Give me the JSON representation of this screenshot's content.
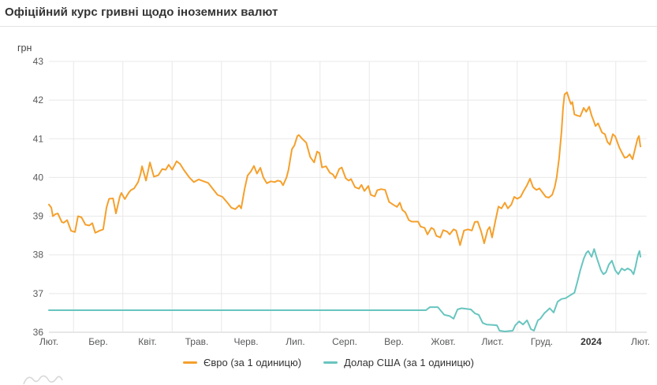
{
  "page": {
    "title": "Офіційний курс гривні щодо іноземних валют"
  },
  "colors": {
    "euro_line": "#f5a02c",
    "usd_line": "#68c5c0",
    "grid": "#e8e8e8",
    "axis_line": "#cfcfcf",
    "tick_text": "#58595b",
    "tick_text_bold": "#333333",
    "hint_wave": "#d8d8d8"
  },
  "chart_data": {
    "type": "line",
    "title": "Офіційний курс гривні щодо іноземних валют",
    "xlabel": "",
    "ylabel": "грн",
    "ylim": [
      36,
      43
    ],
    "y_ticks": [
      36,
      37,
      38,
      39,
      40,
      41,
      42,
      43
    ],
    "x_ticks": [
      {
        "label": "Лют.",
        "bold": false
      },
      {
        "label": "Бер.",
        "bold": false
      },
      {
        "label": "Квіт.",
        "bold": false
      },
      {
        "label": "Трав.",
        "bold": false
      },
      {
        "label": "Черв.",
        "bold": false
      },
      {
        "label": "Лип.",
        "bold": false
      },
      {
        "label": "Серп.",
        "bold": false
      },
      {
        "label": "Вер.",
        "bold": false
      },
      {
        "label": "Жовт.",
        "bold": false
      },
      {
        "label": "Лист.",
        "bold": false
      },
      {
        "label": "Груд.",
        "bold": false
      },
      {
        "label": "2024",
        "bold": true
      },
      {
        "label": "Лют.",
        "bold": false
      }
    ],
    "grid": true,
    "legend_position": "bottom",
    "series": [
      {
        "name": "Євро (за 1 одиницю)",
        "color": "#f5a02c",
        "points": [
          [
            0,
            39.3
          ],
          [
            0.05,
            39.22
          ],
          [
            0.08,
            39.0
          ],
          [
            0.13,
            39.05
          ],
          [
            0.18,
            39.07
          ],
          [
            0.26,
            38.85
          ],
          [
            0.3,
            38.83
          ],
          [
            0.37,
            38.9
          ],
          [
            0.45,
            38.62
          ],
          [
            0.53,
            38.59
          ],
          [
            0.59,
            39.0
          ],
          [
            0.66,
            38.97
          ],
          [
            0.74,
            38.78
          ],
          [
            0.82,
            38.76
          ],
          [
            0.88,
            38.82
          ],
          [
            0.94,
            38.57
          ],
          [
            1.02,
            38.62
          ],
          [
            1.1,
            38.66
          ],
          [
            1.17,
            39.23
          ],
          [
            1.22,
            39.45
          ],
          [
            1.3,
            39.46
          ],
          [
            1.36,
            39.07
          ],
          [
            1.44,
            39.51
          ],
          [
            1.47,
            39.6
          ],
          [
            1.54,
            39.44
          ],
          [
            1.62,
            39.61
          ],
          [
            1.66,
            39.67
          ],
          [
            1.73,
            39.72
          ],
          [
            1.81,
            39.88
          ],
          [
            1.86,
            40.1
          ],
          [
            1.89,
            40.29
          ],
          [
            1.97,
            39.92
          ],
          [
            2.05,
            40.39
          ],
          [
            2.13,
            40.02
          ],
          [
            2.22,
            40.06
          ],
          [
            2.3,
            40.22
          ],
          [
            2.37,
            40.2
          ],
          [
            2.43,
            40.33
          ],
          [
            2.5,
            40.2
          ],
          [
            2.59,
            40.42
          ],
          [
            2.66,
            40.35
          ],
          [
            2.74,
            40.19
          ],
          [
            2.85,
            40.0
          ],
          [
            2.94,
            39.88
          ],
          [
            3.04,
            39.95
          ],
          [
            3.14,
            39.9
          ],
          [
            3.23,
            39.86
          ],
          [
            3.33,
            39.7
          ],
          [
            3.42,
            39.55
          ],
          [
            3.52,
            39.5
          ],
          [
            3.62,
            39.35
          ],
          [
            3.7,
            39.22
          ],
          [
            3.78,
            39.18
          ],
          [
            3.86,
            39.28
          ],
          [
            3.9,
            39.2
          ],
          [
            3.97,
            39.7
          ],
          [
            4.03,
            40.05
          ],
          [
            4.1,
            40.16
          ],
          [
            4.16,
            40.3
          ],
          [
            4.22,
            40.1
          ],
          [
            4.29,
            40.25
          ],
          [
            4.35,
            40.0
          ],
          [
            4.42,
            39.85
          ],
          [
            4.5,
            39.9
          ],
          [
            4.58,
            39.88
          ],
          [
            4.64,
            39.92
          ],
          [
            4.7,
            39.9
          ],
          [
            4.75,
            39.8
          ],
          [
            4.82,
            40.0
          ],
          [
            4.86,
            40.2
          ],
          [
            4.93,
            40.73
          ],
          [
            4.98,
            40.83
          ],
          [
            5.04,
            41.07
          ],
          [
            5.07,
            41.1
          ],
          [
            5.14,
            41.0
          ],
          [
            5.22,
            40.9
          ],
          [
            5.3,
            40.53
          ],
          [
            5.38,
            40.39
          ],
          [
            5.44,
            40.67
          ],
          [
            5.49,
            40.63
          ],
          [
            5.54,
            40.26
          ],
          [
            5.62,
            40.29
          ],
          [
            5.7,
            40.12
          ],
          [
            5.76,
            40.08
          ],
          [
            5.81,
            39.98
          ],
          [
            5.89,
            40.22
          ],
          [
            5.94,
            40.26
          ],
          [
            6.02,
            39.98
          ],
          [
            6.08,
            39.92
          ],
          [
            6.13,
            39.96
          ],
          [
            6.21,
            39.75
          ],
          [
            6.29,
            39.71
          ],
          [
            6.34,
            39.81
          ],
          [
            6.4,
            39.65
          ],
          [
            6.48,
            39.78
          ],
          [
            6.53,
            39.55
          ],
          [
            6.61,
            39.51
          ],
          [
            6.66,
            39.67
          ],
          [
            6.74,
            39.7
          ],
          [
            6.82,
            39.68
          ],
          [
            6.9,
            39.37
          ],
          [
            6.98,
            39.3
          ],
          [
            7.06,
            39.24
          ],
          [
            7.12,
            39.35
          ],
          [
            7.17,
            39.16
          ],
          [
            7.23,
            39.1
          ],
          [
            7.3,
            38.9
          ],
          [
            7.36,
            38.86
          ],
          [
            7.49,
            38.86
          ],
          [
            7.54,
            38.73
          ],
          [
            7.62,
            38.7
          ],
          [
            7.68,
            38.53
          ],
          [
            7.76,
            38.7
          ],
          [
            7.81,
            38.66
          ],
          [
            7.86,
            38.49
          ],
          [
            7.94,
            38.45
          ],
          [
            8.0,
            38.64
          ],
          [
            8.08,
            38.6
          ],
          [
            8.13,
            38.53
          ],
          [
            8.21,
            38.66
          ],
          [
            8.26,
            38.63
          ],
          [
            8.34,
            38.25
          ],
          [
            8.42,
            38.63
          ],
          [
            8.5,
            38.66
          ],
          [
            8.58,
            38.63
          ],
          [
            8.64,
            38.85
          ],
          [
            8.7,
            38.86
          ],
          [
            8.77,
            38.6
          ],
          [
            8.83,
            38.3
          ],
          [
            8.9,
            38.65
          ],
          [
            8.94,
            38.72
          ],
          [
            8.99,
            38.45
          ],
          [
            9.06,
            38.9
          ],
          [
            9.12,
            39.25
          ],
          [
            9.18,
            39.2
          ],
          [
            9.25,
            39.35
          ],
          [
            9.31,
            39.2
          ],
          [
            9.38,
            39.3
          ],
          [
            9.44,
            39.5
          ],
          [
            9.5,
            39.45
          ],
          [
            9.57,
            39.5
          ],
          [
            9.63,
            39.65
          ],
          [
            9.7,
            39.8
          ],
          [
            9.76,
            39.97
          ],
          [
            9.82,
            39.75
          ],
          [
            9.89,
            39.68
          ],
          [
            9.95,
            39.72
          ],
          [
            10.02,
            39.6
          ],
          [
            10.08,
            39.5
          ],
          [
            10.14,
            39.48
          ],
          [
            10.21,
            39.55
          ],
          [
            10.26,
            39.75
          ],
          [
            10.3,
            40.0
          ],
          [
            10.35,
            40.5
          ],
          [
            10.4,
            41.2
          ],
          [
            10.43,
            41.8
          ],
          [
            10.46,
            42.15
          ],
          [
            10.51,
            42.2
          ],
          [
            10.56,
            42.0
          ],
          [
            10.59,
            41.9
          ],
          [
            10.62,
            41.95
          ],
          [
            10.66,
            41.63
          ],
          [
            10.72,
            41.6
          ],
          [
            10.78,
            41.58
          ],
          [
            10.85,
            41.8
          ],
          [
            10.9,
            41.7
          ],
          [
            10.96,
            41.83
          ],
          [
            11.01,
            41.6
          ],
          [
            11.04,
            41.5
          ],
          [
            11.09,
            41.33
          ],
          [
            11.14,
            41.4
          ],
          [
            11.22,
            41.16
          ],
          [
            11.28,
            41.12
          ],
          [
            11.33,
            40.92
          ],
          [
            11.38,
            40.85
          ],
          [
            11.44,
            41.12
          ],
          [
            11.49,
            41.06
          ],
          [
            11.57,
            40.78
          ],
          [
            11.62,
            40.65
          ],
          [
            11.68,
            40.51
          ],
          [
            11.73,
            40.53
          ],
          [
            11.78,
            40.6
          ],
          [
            11.84,
            40.47
          ],
          [
            11.89,
            40.73
          ],
          [
            11.94,
            41.0
          ],
          [
            11.97,
            41.07
          ],
          [
            12.0,
            40.8
          ]
        ]
      },
      {
        "name": "Долар США (за 1 одиницю)",
        "color": "#68c5c0",
        "points": [
          [
            0,
            36.57
          ],
          [
            7.65,
            36.57
          ],
          [
            7.73,
            36.65
          ],
          [
            7.89,
            36.65
          ],
          [
            8.02,
            36.45
          ],
          [
            8.13,
            36.42
          ],
          [
            8.21,
            36.35
          ],
          [
            8.29,
            36.59
          ],
          [
            8.37,
            36.62
          ],
          [
            8.56,
            36.59
          ],
          [
            8.64,
            36.49
          ],
          [
            8.72,
            36.45
          ],
          [
            8.8,
            36.24
          ],
          [
            8.88,
            36.2
          ],
          [
            9.01,
            36.19
          ],
          [
            9.09,
            36.18
          ],
          [
            9.14,
            36.04
          ],
          [
            9.25,
            36.02
          ],
          [
            9.41,
            36.04
          ],
          [
            9.46,
            36.18
          ],
          [
            9.54,
            36.28
          ],
          [
            9.62,
            36.2
          ],
          [
            9.7,
            36.31
          ],
          [
            9.78,
            36.08
          ],
          [
            9.84,
            36.04
          ],
          [
            9.92,
            36.31
          ],
          [
            9.97,
            36.35
          ],
          [
            10.05,
            36.49
          ],
          [
            10.1,
            36.55
          ],
          [
            10.16,
            36.62
          ],
          [
            10.24,
            36.51
          ],
          [
            10.32,
            36.79
          ],
          [
            10.4,
            36.86
          ],
          [
            10.48,
            36.88
          ],
          [
            10.58,
            36.96
          ],
          [
            10.66,
            37.02
          ],
          [
            10.72,
            37.3
          ],
          [
            10.78,
            37.6
          ],
          [
            10.85,
            37.9
          ],
          [
            10.9,
            38.05
          ],
          [
            10.94,
            38.1
          ],
          [
            11.01,
            37.95
          ],
          [
            11.06,
            38.15
          ],
          [
            11.12,
            37.9
          ],
          [
            11.2,
            37.6
          ],
          [
            11.25,
            37.5
          ],
          [
            11.3,
            37.55
          ],
          [
            11.36,
            37.75
          ],
          [
            11.42,
            37.85
          ],
          [
            11.49,
            37.6
          ],
          [
            11.55,
            37.5
          ],
          [
            11.62,
            37.65
          ],
          [
            11.68,
            37.6
          ],
          [
            11.74,
            37.65
          ],
          [
            11.81,
            37.6
          ],
          [
            11.86,
            37.5
          ],
          [
            11.9,
            37.7
          ],
          [
            11.95,
            38.0
          ],
          [
            11.98,
            38.1
          ],
          [
            12.0,
            37.95
          ]
        ]
      }
    ]
  }
}
